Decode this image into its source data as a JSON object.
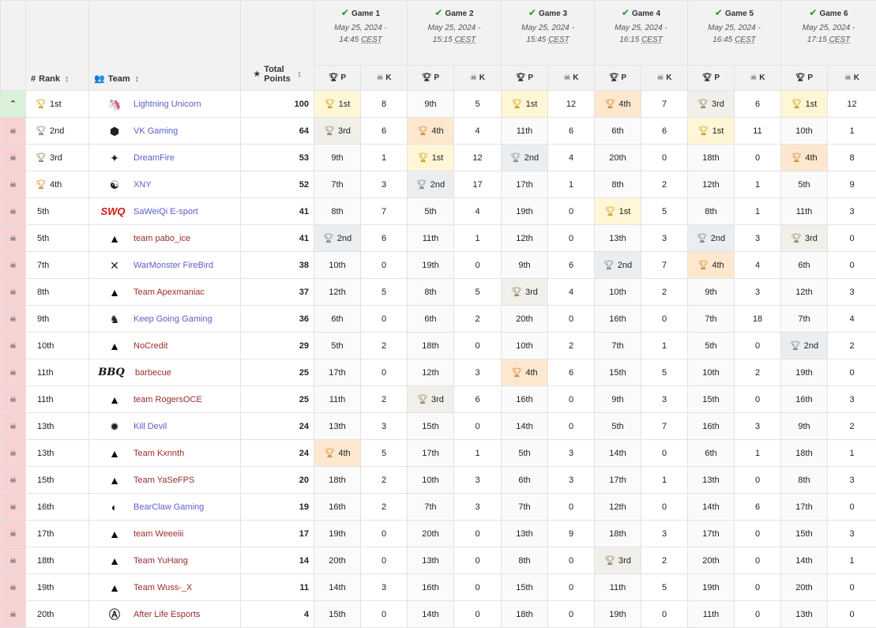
{
  "headers": {
    "rank": "Rank",
    "team": "Team",
    "total_points": "Total Points",
    "p": "P",
    "k": "K"
  },
  "games": [
    {
      "title": "Game 1",
      "date": "May 25, 2024 -",
      "time": "14:45",
      "tz": "CEST"
    },
    {
      "title": "Game 2",
      "date": "May 25, 2024 -",
      "time": "15:15",
      "tz": "CEST"
    },
    {
      "title": "Game 3",
      "date": "May 25, 2024 -",
      "time": "15:45",
      "tz": "CEST"
    },
    {
      "title": "Game 4",
      "date": "May 25, 2024 -",
      "time": "16:15",
      "tz": "CEST"
    },
    {
      "title": "Game 5",
      "date": "May 25, 2024 -",
      "time": "16:45",
      "tz": "CEST"
    },
    {
      "title": "Game 6",
      "date": "May 25, 2024 -",
      "time": "17:15",
      "tz": "CEST"
    }
  ],
  "colors": {
    "advance": "#d9f2d9",
    "eliminated": "#f7d3d3",
    "gold": "#fff6d6",
    "silver": "#eaeef1",
    "bronze": "#f0efea",
    "copper": "#fde8cf"
  },
  "rows": [
    {
      "status": "up",
      "rank": "1st",
      "rank_trophy": "gold",
      "team": "Lightning Unicorn",
      "logo": "unicorn",
      "logo_text": "",
      "dark": false,
      "points": "100",
      "games": [
        [
          "1st",
          "8"
        ],
        [
          "9th",
          "5"
        ],
        [
          "1st",
          "12"
        ],
        [
          "4th",
          "7"
        ],
        [
          "3rd",
          "6"
        ],
        [
          "1st",
          "12"
        ]
      ]
    },
    {
      "status": "down",
      "rank": "2nd",
      "rank_trophy": "silver",
      "team": "VK Gaming",
      "logo": "vk",
      "logo_text": "",
      "dark": false,
      "points": "64",
      "games": [
        [
          "3rd",
          "6"
        ],
        [
          "4th",
          "4"
        ],
        [
          "11th",
          "6"
        ],
        [
          "6th",
          "6"
        ],
        [
          "1st",
          "11"
        ],
        [
          "10th",
          "1"
        ]
      ]
    },
    {
      "status": "down",
      "rank": "3rd",
      "rank_trophy": "bronze",
      "team": "DreamFire",
      "logo": "df",
      "logo_text": "",
      "dark": false,
      "points": "53",
      "games": [
        [
          "9th",
          "1"
        ],
        [
          "1st",
          "12"
        ],
        [
          "2nd",
          "4"
        ],
        [
          "20th",
          "0"
        ],
        [
          "18th",
          "0"
        ],
        [
          "4th",
          "8"
        ]
      ]
    },
    {
      "status": "down",
      "rank": "4th",
      "rank_trophy": "copper",
      "team": "XNY",
      "logo": "xny",
      "logo_text": "",
      "dark": false,
      "points": "52",
      "games": [
        [
          "7th",
          "3"
        ],
        [
          "2nd",
          "17"
        ],
        [
          "17th",
          "1"
        ],
        [
          "8th",
          "2"
        ],
        [
          "12th",
          "1"
        ],
        [
          "5th",
          "9"
        ]
      ]
    },
    {
      "status": "down",
      "rank": "5th",
      "rank_trophy": "",
      "team": "SaWeiQi E-sport",
      "logo": "swq",
      "logo_text": "SWQ",
      "dark": false,
      "points": "41",
      "games": [
        [
          "8th",
          "7"
        ],
        [
          "5th",
          "4"
        ],
        [
          "19th",
          "0"
        ],
        [
          "1st",
          "5"
        ],
        [
          "8th",
          "1"
        ],
        [
          "11th",
          "3"
        ]
      ]
    },
    {
      "status": "down",
      "rank": "5th",
      "rank_trophy": "",
      "team": "team pabo_ice",
      "logo": "apex",
      "logo_text": "",
      "dark": true,
      "points": "41",
      "games": [
        [
          "2nd",
          "6"
        ],
        [
          "11th",
          "1"
        ],
        [
          "12th",
          "0"
        ],
        [
          "13th",
          "3"
        ],
        [
          "2nd",
          "3"
        ],
        [
          "3rd",
          "0"
        ]
      ]
    },
    {
      "status": "down",
      "rank": "7th",
      "rank_trophy": "",
      "team": "WarMonster FireBird",
      "logo": "wm",
      "logo_text": "",
      "dark": false,
      "points": "38",
      "games": [
        [
          "10th",
          "0"
        ],
        [
          "19th",
          "0"
        ],
        [
          "9th",
          "6"
        ],
        [
          "2nd",
          "7"
        ],
        [
          "4th",
          "4"
        ],
        [
          "6th",
          "0"
        ]
      ]
    },
    {
      "status": "down",
      "rank": "8th",
      "rank_trophy": "",
      "team": "Team Apexmaniac",
      "logo": "apex",
      "logo_text": "",
      "dark": true,
      "points": "37",
      "games": [
        [
          "12th",
          "5"
        ],
        [
          "8th",
          "5"
        ],
        [
          "3rd",
          "4"
        ],
        [
          "10th",
          "2"
        ],
        [
          "9th",
          "3"
        ],
        [
          "12th",
          "3"
        ]
      ]
    },
    {
      "status": "down",
      "rank": "9th",
      "rank_trophy": "",
      "team": "Keep Going Gaming",
      "logo": "kgg",
      "logo_text": "",
      "dark": false,
      "points": "36",
      "games": [
        [
          "6th",
          "0"
        ],
        [
          "6th",
          "2"
        ],
        [
          "20th",
          "0"
        ],
        [
          "16th",
          "0"
        ],
        [
          "7th",
          "18"
        ],
        [
          "7th",
          "4"
        ]
      ]
    },
    {
      "status": "down",
      "rank": "10th",
      "rank_trophy": "",
      "team": "NoCredit",
      "logo": "apex",
      "logo_text": "",
      "dark": true,
      "points": "29",
      "games": [
        [
          "5th",
          "2"
        ],
        [
          "18th",
          "0"
        ],
        [
          "10th",
          "2"
        ],
        [
          "7th",
          "1"
        ],
        [
          "5th",
          "0"
        ],
        [
          "2nd",
          "2"
        ]
      ]
    },
    {
      "status": "down",
      "rank": "11th",
      "rank_trophy": "",
      "team": "barbecue",
      "logo": "bbq",
      "logo_text": "BBQ",
      "dark": true,
      "points": "25",
      "games": [
        [
          "17th",
          "0"
        ],
        [
          "12th",
          "3"
        ],
        [
          "4th",
          "6"
        ],
        [
          "15th",
          "5"
        ],
        [
          "10th",
          "2"
        ],
        [
          "19th",
          "0"
        ]
      ]
    },
    {
      "status": "down",
      "rank": "11th",
      "rank_trophy": "",
      "team": "team RogersOCE",
      "logo": "apex",
      "logo_text": "",
      "dark": true,
      "points": "25",
      "games": [
        [
          "11th",
          "2"
        ],
        [
          "3rd",
          "6"
        ],
        [
          "16th",
          "0"
        ],
        [
          "9th",
          "3"
        ],
        [
          "15th",
          "0"
        ],
        [
          "16th",
          "3"
        ]
      ]
    },
    {
      "status": "down",
      "rank": "13th",
      "rank_trophy": "",
      "team": "Kill Devil",
      "logo": "kd",
      "logo_text": "",
      "dark": false,
      "points": "24",
      "games": [
        [
          "13th",
          "3"
        ],
        [
          "15th",
          "0"
        ],
        [
          "14th",
          "0"
        ],
        [
          "5th",
          "7"
        ],
        [
          "16th",
          "3"
        ],
        [
          "9th",
          "2"
        ]
      ]
    },
    {
      "status": "down",
      "rank": "13th",
      "rank_trophy": "",
      "team": "Team Kxnnth",
      "logo": "apex",
      "logo_text": "",
      "dark": true,
      "points": "24",
      "games": [
        [
          "4th",
          "5"
        ],
        [
          "17th",
          "1"
        ],
        [
          "5th",
          "3"
        ],
        [
          "14th",
          "0"
        ],
        [
          "6th",
          "1"
        ],
        [
          "18th",
          "1"
        ]
      ]
    },
    {
      "status": "down",
      "rank": "15th",
      "rank_trophy": "",
      "team": "Team YaSeFPS",
      "logo": "apex",
      "logo_text": "",
      "dark": true,
      "points": "20",
      "games": [
        [
          "18th",
          "2"
        ],
        [
          "10th",
          "3"
        ],
        [
          "6th",
          "3"
        ],
        [
          "17th",
          "1"
        ],
        [
          "13th",
          "0"
        ],
        [
          "8th",
          "3"
        ]
      ]
    },
    {
      "status": "down",
      "rank": "16th",
      "rank_trophy": "",
      "team": "BearClaw Gaming",
      "logo": "bc",
      "logo_text": "",
      "dark": false,
      "points": "19",
      "games": [
        [
          "16th",
          "2"
        ],
        [
          "7th",
          "3"
        ],
        [
          "7th",
          "0"
        ],
        [
          "12th",
          "0"
        ],
        [
          "14th",
          "6"
        ],
        [
          "17th",
          "0"
        ]
      ]
    },
    {
      "status": "down",
      "rank": "17th",
      "rank_trophy": "",
      "team": "team Weeeiii",
      "logo": "apex",
      "logo_text": "",
      "dark": true,
      "points": "17",
      "games": [
        [
          "19th",
          "0"
        ],
        [
          "20th",
          "0"
        ],
        [
          "13th",
          "9"
        ],
        [
          "18th",
          "3"
        ],
        [
          "17th",
          "0"
        ],
        [
          "15th",
          "3"
        ]
      ]
    },
    {
      "status": "down",
      "rank": "18th",
      "rank_trophy": "",
      "team": "Team YuHang",
      "logo": "apex",
      "logo_text": "",
      "dark": true,
      "points": "14",
      "games": [
        [
          "20th",
          "0"
        ],
        [
          "13th",
          "0"
        ],
        [
          "8th",
          "0"
        ],
        [
          "3rd",
          "2"
        ],
        [
          "20th",
          "0"
        ],
        [
          "14th",
          "1"
        ]
      ]
    },
    {
      "status": "down",
      "rank": "19th",
      "rank_trophy": "",
      "team": "Team Wuss-_X",
      "logo": "apex",
      "logo_text": "",
      "dark": true,
      "points": "11",
      "games": [
        [
          "14th",
          "3"
        ],
        [
          "16th",
          "0"
        ],
        [
          "15th",
          "0"
        ],
        [
          "11th",
          "5"
        ],
        [
          "19th",
          "0"
        ],
        [
          "20th",
          "0"
        ]
      ]
    },
    {
      "status": "down",
      "rank": "20th",
      "rank_trophy": "",
      "team": "After Life Esports",
      "logo": "al",
      "logo_text": "",
      "dark": true,
      "points": "4",
      "games": [
        [
          "15th",
          "0"
        ],
        [
          "14th",
          "0"
        ],
        [
          "18th",
          "0"
        ],
        [
          "19th",
          "0"
        ],
        [
          "11th",
          "0"
        ],
        [
          "13th",
          "0"
        ]
      ]
    }
  ]
}
